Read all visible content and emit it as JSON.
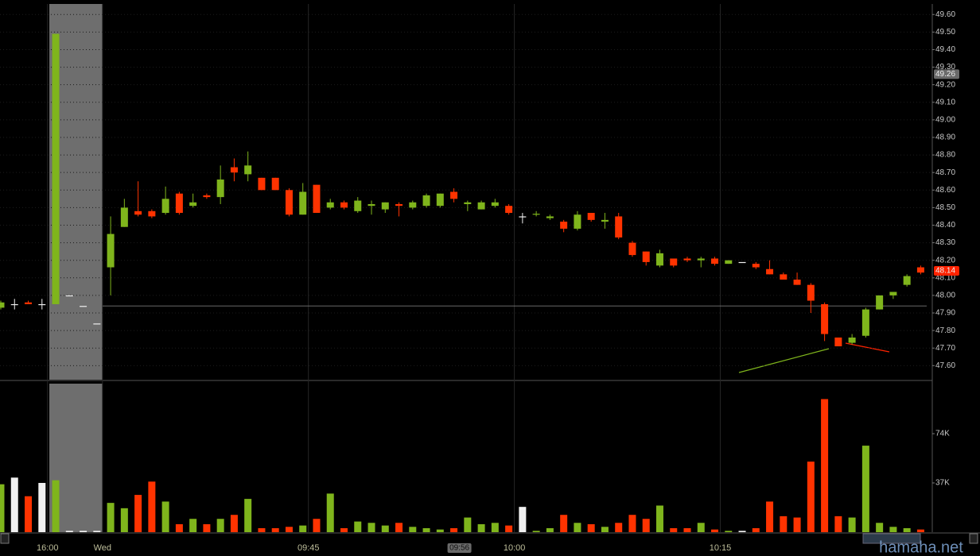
{
  "chart_data": {
    "type": "candlestick",
    "categories": [
      null,
      null,
      null,
      "16:00",
      null,
      null,
      null,
      "Wed",
      null,
      null,
      null,
      null,
      null,
      null,
      null,
      null,
      null,
      null,
      null,
      null,
      null,
      null,
      "09:45",
      null,
      null,
      null,
      null,
      null,
      null,
      null,
      null,
      null,
      null,
      "09:56",
      null,
      null,
      null,
      "10:00",
      null,
      null,
      null,
      null,
      null,
      null,
      null,
      null,
      null,
      null,
      null,
      null,
      null,
      null,
      "10:15",
      null,
      null,
      null,
      null,
      null,
      null,
      null,
      null,
      null,
      null,
      null,
      null,
      null,
      null,
      null
    ],
    "cursor": "09:56",
    "open": [
      47.93,
      47.95,
      47.96,
      47.95,
      47.95,
      48.0,
      47.94,
      47.84,
      48.16,
      48.39,
      48.48,
      48.48,
      48.47,
      48.58,
      48.51,
      48.57,
      48.56,
      48.73,
      48.69,
      48.67,
      48.67,
      48.6,
      48.46,
      48.63,
      48.5,
      48.53,
      48.48,
      48.51,
      48.49,
      48.52,
      48.5,
      48.51,
      48.51,
      48.59,
      48.52,
      48.49,
      48.51,
      48.51,
      48.45,
      48.46,
      48.44,
      48.42,
      48.38,
      48.47,
      48.42,
      48.45,
      48.3,
      48.25,
      48.17,
      48.21,
      48.21,
      48.2,
      48.21,
      48.18,
      48.19,
      48.18,
      48.15,
      48.12,
      48.09,
      48.06,
      47.95,
      47.76,
      47.73,
      47.77,
      47.92,
      48.0,
      48.06,
      48.16
    ],
    "high": [
      47.97,
      47.98,
      47.97,
      47.98,
      49.49,
      48.0,
      47.94,
      47.84,
      48.45,
      48.55,
      48.65,
      48.49,
      48.62,
      48.59,
      48.58,
      48.58,
      48.74,
      48.78,
      48.82,
      48.67,
      48.67,
      48.61,
      48.64,
      48.63,
      48.55,
      48.54,
      48.56,
      48.54,
      48.53,
      48.53,
      48.54,
      48.58,
      48.58,
      48.61,
      48.54,
      48.54,
      48.55,
      48.52,
      48.47,
      48.48,
      48.46,
      48.43,
      48.48,
      48.47,
      48.47,
      48.47,
      48.31,
      48.25,
      48.26,
      48.21,
      48.22,
      48.22,
      48.22,
      48.2,
      48.19,
      48.19,
      48.2,
      48.13,
      48.13,
      48.07,
      47.96,
      47.76,
      47.78,
      47.93,
      48.0,
      48.02,
      48.12,
      48.17
    ],
    "low": [
      47.92,
      47.92,
      47.95,
      47.92,
      47.95,
      48.0,
      47.94,
      47.84,
      48.0,
      48.39,
      48.45,
      48.44,
      48.46,
      48.46,
      48.5,
      48.55,
      48.52,
      48.65,
      48.65,
      48.6,
      48.6,
      48.45,
      48.46,
      48.47,
      48.49,
      48.49,
      48.47,
      48.46,
      48.47,
      48.45,
      48.49,
      48.5,
      48.5,
      48.53,
      48.48,
      48.49,
      48.5,
      48.46,
      48.41,
      48.45,
      48.43,
      48.36,
      48.37,
      48.42,
      48.38,
      48.32,
      48.22,
      48.17,
      48.16,
      48.16,
      48.19,
      48.16,
      48.17,
      48.18,
      48.19,
      48.15,
      48.12,
      48.09,
      48.06,
      47.9,
      47.74,
      47.71,
      47.72,
      47.76,
      47.92,
      47.98,
      48.05,
      48.12
    ],
    "close": [
      47.96,
      47.95,
      47.95,
      47.95,
      49.49,
      48.0,
      47.94,
      47.84,
      48.35,
      48.5,
      48.46,
      48.45,
      48.55,
      48.47,
      48.53,
      48.56,
      48.66,
      48.7,
      48.74,
      48.6,
      48.6,
      48.46,
      48.59,
      48.47,
      48.53,
      48.5,
      48.54,
      48.52,
      48.53,
      48.51,
      48.53,
      48.57,
      48.58,
      48.55,
      48.53,
      48.53,
      48.53,
      48.47,
      48.45,
      48.465,
      48.45,
      48.38,
      48.46,
      48.43,
      48.43,
      48.33,
      48.23,
      48.19,
      48.24,
      48.17,
      48.2,
      48.21,
      48.18,
      48.2,
      48.19,
      48.16,
      48.12,
      48.09,
      48.06,
      47.97,
      47.78,
      47.71,
      47.76,
      47.92,
      48.0,
      48.02,
      48.11,
      48.13
    ],
    "volume": [
      36000,
      41000,
      27000,
      37000,
      39000,
      1000,
      1000,
      1000,
      22000,
      18000,
      28000,
      38000,
      23000,
      6000,
      10000,
      6000,
      10000,
      13000,
      25000,
      3000,
      3000,
      4000,
      5000,
      10000,
      29000,
      3000,
      8000,
      7000,
      5000,
      7000,
      4000,
      3000,
      2000,
      3000,
      11000,
      6000,
      7000,
      5000,
      19000,
      1000,
      3000,
      13000,
      7000,
      6000,
      4000,
      7000,
      13000,
      10000,
      20000,
      3000,
      3000,
      7000,
      2000,
      1000,
      1000,
      3000,
      23000,
      12000,
      11000,
      53000,
      100000,
      12000,
      11000,
      65000,
      7000,
      4000,
      3000,
      2000
    ],
    "ylim": [
      47.52,
      49.66
    ],
    "yticks": [
      {
        "value": 47.6,
        "label": "47.60"
      },
      {
        "value": 47.7,
        "label": "47.70"
      },
      {
        "value": 47.8,
        "label": "47.80"
      },
      {
        "value": 47.9,
        "label": "47.90"
      },
      {
        "value": 48.0,
        "label": "48.00"
      },
      {
        "value": 48.1,
        "label": "48.10"
      },
      {
        "value": 48.2,
        "label": "48.20"
      },
      {
        "value": 48.3,
        "label": "48.30"
      },
      {
        "value": 48.4,
        "label": "48.40"
      },
      {
        "value": 48.5,
        "label": "48.50"
      },
      {
        "value": 48.6,
        "label": "48.60"
      },
      {
        "value": 48.7,
        "label": "48.70"
      },
      {
        "value": 48.8,
        "label": "48.80"
      },
      {
        "value": 48.9,
        "label": "48.90"
      },
      {
        "value": 49.0,
        "label": "49.00"
      },
      {
        "value": 49.1,
        "label": "49.10"
      },
      {
        "value": 49.2,
        "label": "49.20"
      },
      {
        "value": 49.3,
        "label": "49.30"
      },
      {
        "value": 49.4,
        "label": "49.40"
      },
      {
        "value": 49.5,
        "label": "49.50"
      },
      {
        "value": 49.6,
        "label": "49.60"
      }
    ],
    "volume_ylim": [
      0,
      111600
    ],
    "volume_ticks": [
      {
        "value": 37000,
        "label": "37K"
      },
      {
        "value": 74000,
        "label": "74K"
      }
    ],
    "reference_line": 47.94,
    "price_markers": [
      {
        "value": 49.26,
        "label": "49.26",
        "color": "#6a6a6a"
      },
      {
        "value": 48.14,
        "label": "48.14",
        "color": "#ff2200"
      }
    ],
    "colors": {
      "up": "#7fb51c",
      "down": "#ff3300",
      "flat": "#f0f0f0"
    },
    "watermark": "hamaha.net"
  }
}
